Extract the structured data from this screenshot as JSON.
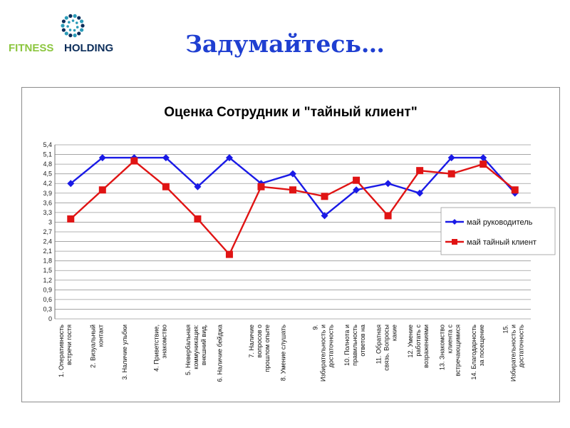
{
  "slide": {
    "title": "Задумайтесь…",
    "logo": {
      "text_left": "FITNESS",
      "text_right": "HOLDING",
      "icon": "dotted-circle-logo-icon"
    }
  },
  "colors": {
    "title": "#1f3fd1",
    "series_blue": "#1a1ae6",
    "series_red": "#e01414",
    "logo_green": "#8cc63f",
    "logo_navy": "#0b2d5a",
    "logo_teal": "#2a9bb8"
  },
  "chart_data": {
    "type": "line",
    "title": "Оценка Сотрудник и \"тайный клиент\"",
    "xlabel": "",
    "ylabel": "",
    "ylim": [
      0,
      5.4
    ],
    "yticks": [
      "0",
      "0,3",
      "0,6",
      "0,9",
      "1,2",
      "1,5",
      "1,8",
      "2,1",
      "2,4",
      "2,7",
      "3",
      "3,3",
      "3,6",
      "3,9",
      "4,2",
      "4,5",
      "4,8",
      "5,1",
      "5,4"
    ],
    "grid": true,
    "legend_position": "right",
    "categories": [
      "1. Оперативность встречи гостя",
      "2. Визуальный контакт",
      "3. Наличие ульбки",
      "4. Приветствие, знакомство",
      "5. Невербальная коммуникация: внешний вид,",
      "6. Наличие бейджа",
      "7. Наличие вопросов о прошлом опыте",
      "8. Умение слушать",
      "9. Избирательность и достаточность",
      "10. Полнота и правильность ответов на",
      "11. Обратная связь. Вопросы какие",
      "12. Умение работать с возражениями",
      "13. Знакомство клиента с встречающимися",
      "14. Благодарность за посещение",
      "15. Избирательность и достаточность"
    ],
    "series": [
      {
        "name": "май руководитель",
        "color": "#1a1ae6",
        "marker": "diamond",
        "values": [
          4.2,
          5.0,
          5.0,
          5.0,
          4.1,
          5.0,
          4.2,
          4.5,
          3.2,
          4.0,
          4.2,
          3.9,
          5.0,
          5.0,
          3.9
        ]
      },
      {
        "name": "май тайный клиент",
        "color": "#e01414",
        "marker": "square",
        "values": [
          3.1,
          4.0,
          4.9,
          4.1,
          3.1,
          2.0,
          4.1,
          4.0,
          3.8,
          4.3,
          3.2,
          4.6,
          4.5,
          4.8,
          4.0
        ]
      }
    ]
  }
}
